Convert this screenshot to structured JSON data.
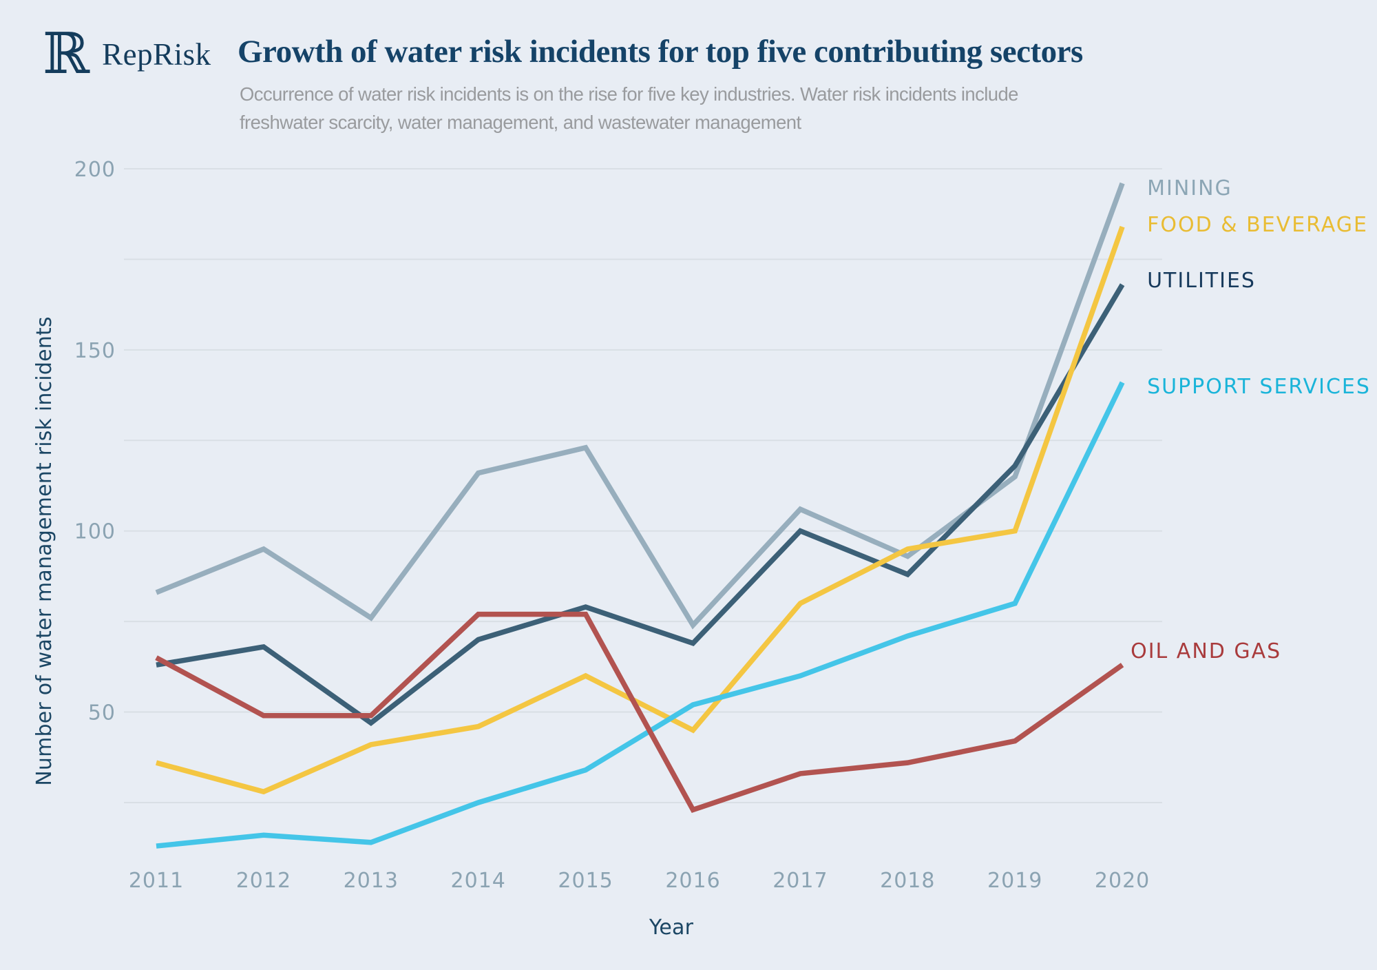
{
  "page": {
    "background_color": "#e8edf4"
  },
  "brand": {
    "logo_glyph": "ℝ",
    "name": "RepRisk"
  },
  "header": {
    "title": "Growth of water risk incidents for top five contributing sectors",
    "subtitle_line1": "Occurrence of water risk incidents is on the rise for five key industries. Water risk incidents include",
    "subtitle_line2": "freshwater scarcity, water management, and wastewater management"
  },
  "chart_data": {
    "type": "line",
    "title": "Growth of water risk incidents for top five contributing sectors",
    "xlabel": "Year",
    "ylabel": "Number of water management risk incidents",
    "x": [
      "2011",
      "2012",
      "2013",
      "2014",
      "2015",
      "2016",
      "2017",
      "2018",
      "2019",
      "2020"
    ],
    "y_ticks": [
      50,
      100,
      150,
      200
    ],
    "gridlines": [
      25,
      50,
      75,
      100,
      125,
      150,
      175,
      200
    ],
    "ylim": [
      0,
      200
    ],
    "grid": true,
    "grid_color": "#d9dfe5",
    "legend_position": "right-of-line-ends",
    "series": [
      {
        "id": "mining",
        "name": "MINING",
        "color": "#97aebd",
        "label_color": "#8ca6b5",
        "values": [
          83,
          95,
          76,
          116,
          123,
          74,
          106,
          93,
          115,
          196
        ]
      },
      {
        "id": "food-beverage",
        "name": "FOOD & BEVERAGE",
        "color": "#f4c642",
        "label_color": "#e9bc33",
        "values": [
          36,
          28,
          41,
          46,
          60,
          45,
          80,
          95,
          100,
          184
        ]
      },
      {
        "id": "utilities",
        "name": "UTILITIES",
        "color": "#3c6077",
        "label_color": "#173a5c",
        "values": [
          63,
          68,
          47,
          70,
          79,
          69,
          100,
          88,
          118,
          168
        ]
      },
      {
        "id": "support-services",
        "name": "SUPPORT SERVICES",
        "color": "#44c5e8",
        "label_color": "#1ab4d9",
        "values": [
          13,
          16,
          14,
          25,
          34,
          52,
          60,
          71,
          80,
          141
        ]
      },
      {
        "id": "oil-and-gas",
        "name": "OIL AND GAS",
        "color": "#b25350",
        "label_color": "#a93b3c",
        "values": [
          65,
          49,
          49,
          77,
          77,
          23,
          33,
          36,
          42,
          63
        ]
      }
    ]
  }
}
